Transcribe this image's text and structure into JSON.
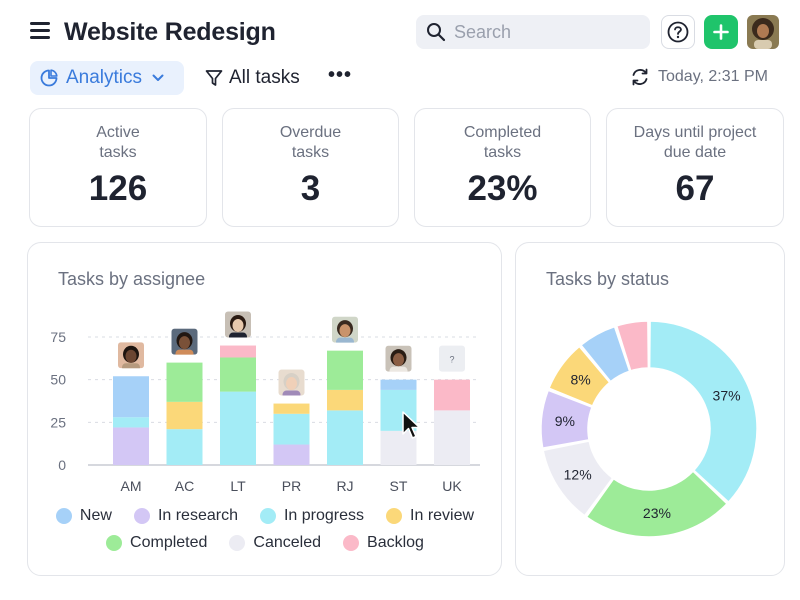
{
  "header": {
    "title": "Website Redesign",
    "search_placeholder": "Search",
    "help_icon": "help-icon",
    "add_icon": "plus-icon",
    "add_color": "#1fc46b"
  },
  "toolbar": {
    "dashboard_label": "Analytics",
    "filter_label": "All tasks",
    "more_label": "•••",
    "refresh_label": "Today, 2:31 PM"
  },
  "stats": [
    {
      "label": "Active tasks",
      "value": "126"
    },
    {
      "label": "Overdue tasks",
      "value": "3"
    },
    {
      "label": "Completed tasks",
      "value": "23%"
    },
    {
      "label": "Days until project due date",
      "value": "67"
    }
  ],
  "assignee_panel": {
    "title": "Tasks by assignee"
  },
  "status_panel": {
    "title": "Tasks by status"
  },
  "legend": [
    {
      "label": "New",
      "color": "#a6d1f8"
    },
    {
      "label": "In research",
      "color": "#d3c7f5"
    },
    {
      "label": "In progress",
      "color": "#a3ecf6"
    },
    {
      "label": "In review",
      "color": "#fbd879"
    },
    {
      "label": "Completed",
      "color": "#9deb98"
    },
    {
      "label": "Canceled",
      "color": "#ececf3"
    },
    {
      "label": "Backlog",
      "color": "#fbb9c8"
    }
  ],
  "chart_data": [
    {
      "type": "bar",
      "stacked": true,
      "title": "Tasks by assignee",
      "categories": [
        "AM",
        "AC",
        "LT",
        "PR",
        "RJ",
        "ST",
        "UK"
      ],
      "ylim": [
        0,
        85
      ],
      "yticks": [
        0,
        25,
        50,
        75
      ],
      "grid": true,
      "series": [
        {
          "name": "In research",
          "color": "#d3c7f5",
          "values": [
            22,
            0,
            0,
            12,
            0,
            0,
            0
          ]
        },
        {
          "name": "Canceled",
          "color": "#ececf3",
          "values": [
            0,
            0,
            0,
            0,
            0,
            20,
            32
          ]
        },
        {
          "name": "In progress",
          "color": "#a3ecf6",
          "values": [
            6,
            21,
            43,
            18,
            32,
            24,
            0
          ]
        },
        {
          "name": "In review",
          "color": "#fbd879",
          "values": [
            0,
            16,
            0,
            6,
            12,
            0,
            0
          ]
        },
        {
          "name": "New",
          "color": "#a6d1f8",
          "values": [
            24,
            0,
            0,
            0,
            0,
            6,
            0
          ]
        },
        {
          "name": "Completed",
          "color": "#9deb98",
          "values": [
            0,
            23,
            20,
            0,
            23,
            0,
            0
          ]
        },
        {
          "name": "Backlog",
          "color": "#fbb9c8",
          "values": [
            0,
            0,
            7,
            0,
            0,
            0,
            18
          ]
        }
      ],
      "unknown_avatar_label": "?"
    },
    {
      "type": "pie",
      "donut": true,
      "title": "Tasks by status",
      "slices": [
        {
          "name": "In progress",
          "value": 37,
          "label": "37%",
          "color": "#a3ecf6"
        },
        {
          "name": "Completed",
          "value": 23,
          "label": "23%",
          "color": "#9deb98"
        },
        {
          "name": "Canceled",
          "value": 12,
          "label": "12%",
          "color": "#ececf3"
        },
        {
          "name": "In research",
          "value": 9,
          "label": "9%",
          "color": "#d3c7f5"
        },
        {
          "name": "In review",
          "value": 8,
          "label": "8%",
          "color": "#fbd879"
        },
        {
          "name": "New",
          "value": 6,
          "label": "",
          "color": "#a6d1f8"
        },
        {
          "name": "Backlog",
          "value": 5,
          "label": "",
          "color": "#fbb9c8"
        }
      ]
    }
  ]
}
